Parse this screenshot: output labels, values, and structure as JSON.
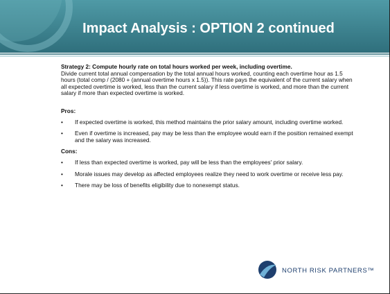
{
  "header": {
    "title": "Impact Analysis :  OPTION 2 continued"
  },
  "strategy": {
    "heading": "Strategy 2: Compute hourly rate on total hours worked per week, including overtime.",
    "text": "Divide current total annual compensation by the total annual hours worked, counting each overtime hour as 1.5 hours (total comp / (2080 + (annual overtime hours x 1.5)). This rate pays the equivalent of the current salary when all expected overtime is worked, less than the current salary if less overtime is worked, and more than the current salary if more than expected overtime is worked."
  },
  "pros": {
    "heading": "Pros:",
    "items": [
      "If expected overtime is worked, this method maintains the prior salary amount, including overtime worked.",
      "Even if overtime is increased, pay may be less than the employee would earn if the position remained exempt and the salary was increased."
    ]
  },
  "cons": {
    "heading": "Cons:",
    "items": [
      "If less than expected overtime is worked, pay will be less than the employees' prior salary.",
      "Morale issues may develop as affected employees realize they need to work overtime or receive less pay.",
      "There may be loss of benefits eligibility due to nonexempt status."
    ]
  },
  "logo": {
    "text": "NORTH RISK PARTNERS™"
  }
}
